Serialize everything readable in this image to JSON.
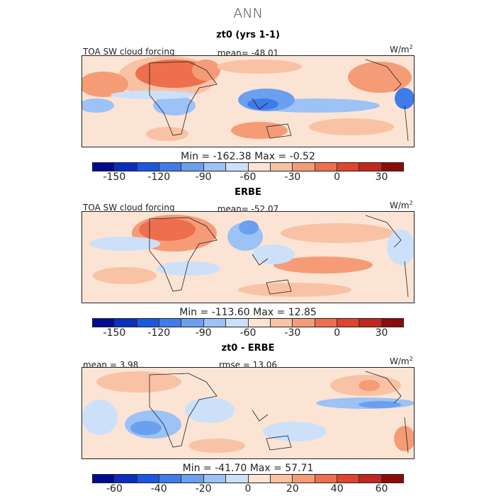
{
  "title": "ANN",
  "units_base": "W/m",
  "units_exp": "2",
  "colors": {
    "palette": [
      "#000c8f",
      "#0a2fbe",
      "#1c58dc",
      "#3f7be9",
      "#6b9ff0",
      "#9cc2f6",
      "#cce0fa",
      "#fbe4d4",
      "#f9c2a4",
      "#f59c77",
      "#ee6f4d",
      "#e0432e",
      "#c0281f",
      "#8c0c0c"
    ],
    "land": "#222222"
  },
  "icons": [
    "coastline-icon"
  ],
  "chart_data": [
    {
      "type": "heatmap",
      "panel_title": "zt0 (yrs 1-1)",
      "field_label": "TOA SW cloud forcing",
      "stat_text": "mean= -48.01",
      "minmax_text": "Min = -162.38 Max =  -0.52",
      "colorbar_ticks": [
        "-150",
        "-120",
        "-90",
        "-60",
        "-30",
        "0",
        "30"
      ],
      "colorbar_range": [
        -165,
        45
      ],
      "mean": -48.01,
      "min": -162.38,
      "max": -0.52
    },
    {
      "type": "heatmap",
      "panel_title": "ERBE",
      "field_label": "TOA SW cloud forcing",
      "stat_text": "mean= -52.07",
      "minmax_text": "Min = -113.60 Max =  12.85",
      "colorbar_ticks": [
        "-150",
        "-120",
        "-90",
        "-60",
        "-30",
        "0",
        "30"
      ],
      "colorbar_range": [
        -165,
        45
      ],
      "mean": -52.07,
      "min": -113.6,
      "max": 12.85
    },
    {
      "type": "heatmap",
      "panel_title": "zt0 - ERBE",
      "stat_text": "mean =   3.98",
      "stat2_text": "rmse =  13.06",
      "minmax_text": "Min = -41.70 Max =  57.71",
      "colorbar_ticks": [
        "-60",
        "-40",
        "-20",
        "0",
        "20",
        "40",
        "60"
      ],
      "colorbar_range": [
        -70,
        70
      ],
      "mean": 3.98,
      "rmse": 13.06,
      "min": -41.7,
      "max": 57.71
    }
  ]
}
